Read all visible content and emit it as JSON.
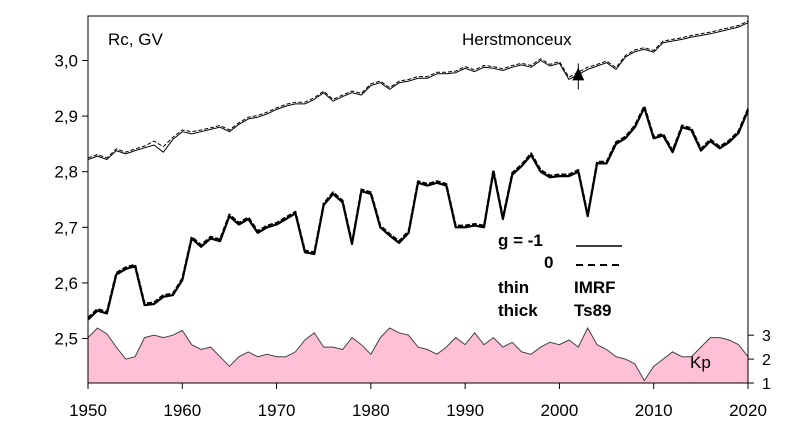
{
  "chart_data": {
    "type": "line",
    "ylabel": "Rc, GV",
    "annotation": "Herstmonceux",
    "xlim": [
      1950,
      2020
    ],
    "ylim": [
      2.42,
      3.08
    ],
    "x_ticks": [
      1950,
      1960,
      1970,
      1980,
      1990,
      2000,
      2010,
      2020
    ],
    "y_ticks": [
      {
        "value": 2.5,
        "label": "2,5"
      },
      {
        "value": 2.6,
        "label": "2,6"
      },
      {
        "value": 2.7,
        "label": "2,7"
      },
      {
        "value": 2.8,
        "label": "2,8"
      },
      {
        "value": 2.9,
        "label": "2,9"
      },
      {
        "value": 3.0,
        "label": "3,0"
      }
    ],
    "legend": {
      "g_label": "g  = -1",
      "g_zero_label": "0",
      "thin_label": "thin",
      "thick_label": "thick",
      "imrf_label": "IMRF",
      "ts89_label": "Ts89"
    },
    "kp": {
      "label": "Kp",
      "color": "#ffbfd6",
      "ylim": [
        1,
        3.3
      ],
      "ticks": [
        "1",
        "2",
        "3"
      ],
      "x": [
        1950,
        1951,
        1952,
        1953,
        1954,
        1955,
        1956,
        1957,
        1958,
        1959,
        1960,
        1961,
        1962,
        1963,
        1964,
        1965,
        1966,
        1967,
        1968,
        1969,
        1970,
        1971,
        1972,
        1973,
        1974,
        1975,
        1976,
        1977,
        1978,
        1979,
        1980,
        1981,
        1982,
        1983,
        1984,
        1985,
        1986,
        1987,
        1988,
        1989,
        1990,
        1991,
        1992,
        1993,
        1994,
        1995,
        1996,
        1997,
        1998,
        1999,
        2000,
        2001,
        2002,
        2003,
        2004,
        2005,
        2006,
        2007,
        2008,
        2009,
        2010,
        2011,
        2012,
        2013,
        2014,
        2015,
        2016,
        2017,
        2018,
        2019,
        2020
      ],
      "values": [
        2.9,
        3.3,
        3.05,
        2.5,
        2.0,
        2.1,
        2.9,
        3.0,
        2.9,
        3.0,
        3.2,
        2.6,
        2.4,
        2.5,
        2.1,
        1.7,
        2.1,
        2.3,
        2.1,
        2.2,
        2.1,
        2.1,
        2.3,
        2.8,
        3.1,
        2.5,
        2.5,
        2.4,
        2.9,
        2.6,
        2.2,
        2.9,
        3.3,
        3.1,
        3.0,
        2.5,
        2.4,
        2.2,
        2.5,
        2.9,
        2.6,
        3.1,
        2.6,
        2.9,
        2.5,
        2.7,
        2.3,
        2.2,
        2.5,
        2.7,
        2.6,
        2.8,
        2.5,
        3.3,
        2.6,
        2.4,
        2.1,
        2.0,
        1.8,
        1.1,
        1.7,
        2.0,
        2.3,
        2.1,
        2.1,
        2.5,
        2.9,
        2.9,
        2.8,
        2.6,
        2.1
      ]
    },
    "series": [
      {
        "name": "g = -1, IMRF, thin",
        "role": "upper-solid",
        "x": [
          1950,
          1951,
          1952,
          1953,
          1954,
          1955,
          1956,
          1957,
          1958,
          1959,
          1960,
          1961,
          1962,
          1963,
          1964,
          1965,
          1966,
          1967,
          1968,
          1969,
          1970,
          1971,
          1972,
          1973,
          1974,
          1975,
          1976,
          1977,
          1978,
          1979,
          1980,
          1981,
          1982,
          1983,
          1984,
          1985,
          1986,
          1987,
          1988,
          1989,
          1990,
          1991,
          1992,
          1993,
          1994,
          1995,
          1996,
          1997,
          1998,
          1999,
          2000,
          2001,
          2002,
          2003,
          2004,
          2005,
          2006,
          2007,
          2008,
          2009,
          2010,
          2011,
          2012,
          2013,
          2014,
          2015,
          2016,
          2017,
          2018,
          2019,
          2020
        ],
        "values": [
          2.822,
          2.828,
          2.822,
          2.838,
          2.832,
          2.838,
          2.843,
          2.848,
          2.835,
          2.858,
          2.872,
          2.868,
          2.872,
          2.876,
          2.88,
          2.872,
          2.885,
          2.895,
          2.898,
          2.904,
          2.912,
          2.918,
          2.922,
          2.922,
          2.93,
          2.942,
          2.927,
          2.935,
          2.942,
          2.938,
          2.955,
          2.96,
          2.948,
          2.96,
          2.963,
          2.968,
          2.968,
          2.976,
          2.976,
          2.978,
          2.986,
          2.98,
          2.988,
          2.986,
          2.982,
          2.988,
          2.992,
          2.988,
          3.0,
          2.99,
          2.995,
          2.966,
          2.975,
          2.984,
          2.99,
          2.996,
          2.984,
          3.006,
          3.016,
          3.02,
          3.015,
          3.032,
          3.035,
          3.038,
          3.042,
          3.045,
          3.048,
          3.052,
          3.056,
          3.06,
          3.068
        ]
      },
      {
        "name": "g = 0, IMRF, thin",
        "role": "upper-dashed",
        "x": [
          1950,
          1951,
          1952,
          1953,
          1954,
          1955,
          1956,
          1957,
          1958,
          1959,
          1960,
          1961,
          1962,
          1963,
          1964,
          1965,
          1966,
          1967,
          1968,
          1969,
          1970,
          1971,
          1972,
          1973,
          1974,
          1975,
          1976,
          1977,
          1978,
          1979,
          1980,
          1981,
          1982,
          1983,
          1984,
          1985,
          1986,
          1987,
          1988,
          1989,
          1990,
          1991,
          1992,
          1993,
          1994,
          1995,
          1996,
          1997,
          1998,
          1999,
          2000,
          2001,
          2002,
          2003,
          2004,
          2005,
          2006,
          2007,
          2008,
          2009,
          2010,
          2011,
          2012,
          2013,
          2014,
          2015,
          2016,
          2017,
          2018,
          2019,
          2020
        ],
        "values": [
          2.825,
          2.831,
          2.825,
          2.841,
          2.835,
          2.841,
          2.846,
          2.855,
          2.845,
          2.862,
          2.875,
          2.872,
          2.875,
          2.879,
          2.883,
          2.875,
          2.888,
          2.898,
          2.901,
          2.907,
          2.915,
          2.921,
          2.925,
          2.925,
          2.933,
          2.945,
          2.93,
          2.938,
          2.945,
          2.941,
          2.958,
          2.963,
          2.951,
          2.963,
          2.966,
          2.971,
          2.971,
          2.979,
          2.979,
          2.981,
          2.989,
          2.983,
          2.991,
          2.989,
          2.985,
          2.991,
          2.995,
          2.991,
          3.003,
          2.993,
          2.998,
          2.97,
          2.979,
          2.988,
          2.993,
          2.999,
          2.987,
          3.009,
          3.019,
          3.023,
          3.018,
          3.035,
          3.038,
          3.041,
          3.045,
          3.048,
          3.051,
          3.055,
          3.059,
          3.063,
          3.071
        ]
      },
      {
        "name": "g = -1, Ts89, thick",
        "role": "lower-solid",
        "x": [
          1950,
          1951,
          1952,
          1953,
          1954,
          1955,
          1956,
          1957,
          1958,
          1959,
          1960,
          1961,
          1962,
          1963,
          1964,
          1965,
          1966,
          1967,
          1968,
          1969,
          1970,
          1971,
          1972,
          1973,
          1974,
          1975,
          1976,
          1977,
          1978,
          1979,
          1980,
          1981,
          1982,
          1983,
          1984,
          1985,
          1986,
          1987,
          1988,
          1989,
          1990,
          1991,
          1992,
          1993,
          1994,
          1995,
          1996,
          1997,
          1998,
          1999,
          2000,
          2001,
          2002,
          2003,
          2004,
          2005,
          2006,
          2007,
          2008,
          2009,
          2010,
          2011,
          2012,
          2013,
          2014,
          2015,
          2016,
          2017,
          2018,
          2019,
          2020
        ],
        "values": [
          2.534,
          2.55,
          2.545,
          2.615,
          2.625,
          2.63,
          2.56,
          2.562,
          2.575,
          2.578,
          2.605,
          2.68,
          2.665,
          2.68,
          2.675,
          2.72,
          2.705,
          2.715,
          2.69,
          2.7,
          2.705,
          2.715,
          2.725,
          2.655,
          2.652,
          2.74,
          2.76,
          2.745,
          2.67,
          2.765,
          2.76,
          2.7,
          2.685,
          2.672,
          2.69,
          2.78,
          2.775,
          2.78,
          2.775,
          2.7,
          2.7,
          2.703,
          2.7,
          2.8,
          2.715,
          2.795,
          2.81,
          2.83,
          2.8,
          2.79,
          2.792,
          2.792,
          2.8,
          2.72,
          2.815,
          2.815,
          2.85,
          2.86,
          2.88,
          2.915,
          2.86,
          2.865,
          2.835,
          2.88,
          2.875,
          2.838,
          2.855,
          2.842,
          2.853,
          2.87,
          2.91
        ]
      },
      {
        "name": "g = 0, Ts89, thick",
        "role": "lower-dashed",
        "x": [
          1950,
          1951,
          1952,
          1953,
          1954,
          1955,
          1956,
          1957,
          1958,
          1959,
          1960,
          1961,
          1962,
          1963,
          1964,
          1965,
          1966,
          1967,
          1968,
          1969,
          1970,
          1971,
          1972,
          1973,
          1974,
          1975,
          1976,
          1977,
          1978,
          1979,
          1980,
          1981,
          1982,
          1983,
          1984,
          1985,
          1986,
          1987,
          1988,
          1989,
          1990,
          1991,
          1992,
          1993,
          1994,
          1995,
          1996,
          1997,
          1998,
          1999,
          2000,
          2001,
          2002,
          2003,
          2004,
          2005,
          2006,
          2007,
          2008,
          2009,
          2010,
          2011,
          2012,
          2013,
          2014,
          2015,
          2016,
          2017,
          2018,
          2019,
          2020
        ],
        "values": [
          2.537,
          2.553,
          2.548,
          2.618,
          2.628,
          2.633,
          2.563,
          2.565,
          2.578,
          2.581,
          2.608,
          2.683,
          2.668,
          2.683,
          2.678,
          2.723,
          2.708,
          2.718,
          2.693,
          2.703,
          2.708,
          2.718,
          2.728,
          2.658,
          2.655,
          2.743,
          2.763,
          2.748,
          2.673,
          2.768,
          2.763,
          2.703,
          2.688,
          2.675,
          2.693,
          2.783,
          2.778,
          2.783,
          2.778,
          2.703,
          2.703,
          2.706,
          2.703,
          2.803,
          2.718,
          2.798,
          2.813,
          2.833,
          2.803,
          2.793,
          2.795,
          2.795,
          2.803,
          2.723,
          2.818,
          2.818,
          2.853,
          2.863,
          2.883,
          2.918,
          2.863,
          2.868,
          2.838,
          2.883,
          2.878,
          2.841,
          2.858,
          2.845,
          2.856,
          2.873,
          2.913
        ]
      }
    ],
    "marker_x": 2002,
    "grid": false,
    "legend_position": "center-right"
  }
}
